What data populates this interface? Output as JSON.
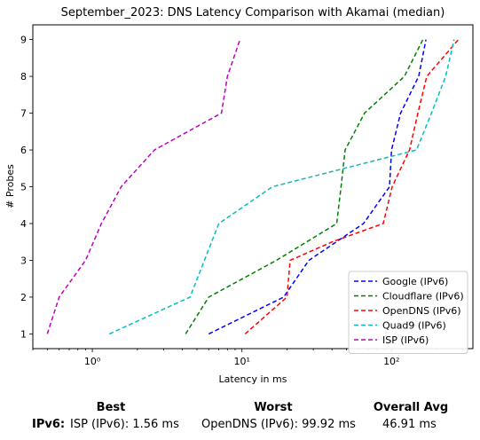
{
  "chart_data": {
    "type": "line",
    "title": "September_2023: DNS Latency Comparison with Akamai (median)",
    "xlabel": "Latency in ms",
    "ylabel": "# Probes",
    "xscale": "log",
    "xlim": [
      0.4,
      350
    ],
    "ylim": [
      0.6,
      9.4
    ],
    "xticks": [
      1,
      10,
      100
    ],
    "xtick_labels": [
      "10⁰",
      "10¹",
      "10²"
    ],
    "yticks": [
      1,
      2,
      3,
      4,
      5,
      6,
      7,
      8,
      9
    ],
    "grid": false,
    "legend_position": "lower-right",
    "series": [
      {
        "name": "Google (IPv6)",
        "color": "#0000ff",
        "x": [
          6.0,
          19.0,
          28.0,
          65.0,
          97.0,
          100.0,
          115.0,
          152.0,
          170.0
        ],
        "y": [
          1,
          2,
          3,
          4,
          5,
          6,
          7,
          8,
          9
        ]
      },
      {
        "name": "Cloudflare (IPv6)",
        "color": "#008000",
        "x": [
          4.2,
          6.0,
          17.0,
          43.0,
          46.0,
          49.0,
          66.0,
          122.0,
          162.0
        ],
        "y": [
          1,
          2,
          3,
          4,
          5,
          6,
          7,
          8,
          9
        ]
      },
      {
        "name": "OpenDNS (IPv6)",
        "color": "#ff0000",
        "x": [
          10.5,
          20.0,
          21.0,
          40.0,
          88.0,
          101.0,
          132.0,
          150.0,
          172.0,
          280.0
        ],
        "y": [
          1,
          2,
          3,
          3.5,
          4,
          5,
          6,
          7,
          8,
          9
        ]
      },
      {
        "name": "Quad9 (IPv6)",
        "color": "#00bfbf",
        "x": [
          1.3,
          4.5,
          7.0,
          16.0,
          147.0,
          185.0,
          230.0,
          262.0
        ],
        "y": [
          1,
          2,
          4,
          5,
          6,
          7,
          8,
          9
        ]
      },
      {
        "name": "ISP (IPv6)",
        "color": "#bf00bf",
        "x": [
          0.5,
          0.6,
          0.9,
          1.15,
          1.56,
          2.6,
          7.3,
          8.0,
          9.7
        ],
        "y": [
          1,
          2,
          3,
          4,
          5,
          6,
          7,
          8,
          9
        ]
      }
    ]
  },
  "summary": {
    "best_header": "Best",
    "worst_header": "Worst",
    "avg_header": "Overall Avg",
    "row_label": "IPv6:",
    "best_value": "ISP (IPv6): 1.56 ms",
    "worst_value": "OpenDNS (IPv6): 99.92 ms",
    "avg_value": "46.91 ms"
  }
}
